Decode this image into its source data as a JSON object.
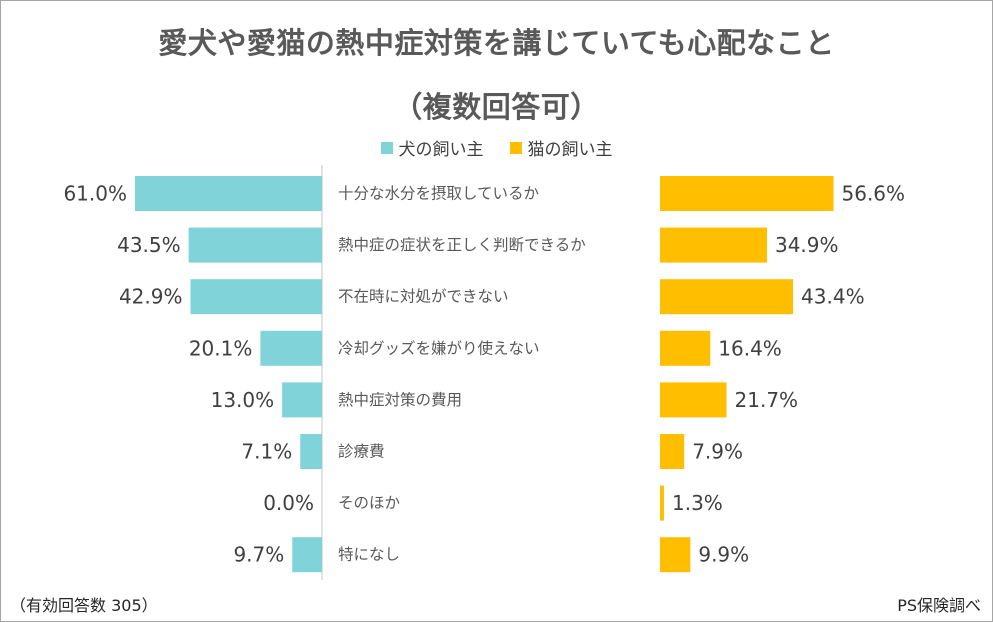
{
  "chart_data": {
    "type": "bar",
    "title": "愛犬や愛猫の熱中症対策を講じていても心配なこと",
    "subtitle": "（複数回答可）",
    "categories": [
      "十分な水分を摂取しているか",
      "熱中症の症状を正しく判断できるか",
      "不在時に対処ができない",
      "冷却グッズを嫌がり使えない",
      "熱中症対策の費用",
      "診療費",
      "そのほか",
      "特になし"
    ],
    "series": [
      {
        "name": "犬の飼い主",
        "color": "#7fd3d9",
        "values": [
          61.0,
          43.5,
          42.9,
          20.1,
          13.0,
          7.1,
          0.0,
          9.7
        ]
      },
      {
        "name": "猫の飼い主",
        "color": "#ffbf00",
        "values": [
          56.6,
          34.9,
          43.4,
          16.4,
          21.7,
          7.9,
          1.3,
          9.9
        ]
      }
    ],
    "value_format": "percent_1dp",
    "legend_position": "top-center",
    "grid": false,
    "xlim": [
      0,
      70
    ]
  },
  "footer": {
    "note_left": "（有効回答数 305）",
    "note_right": "PS保険調べ"
  }
}
